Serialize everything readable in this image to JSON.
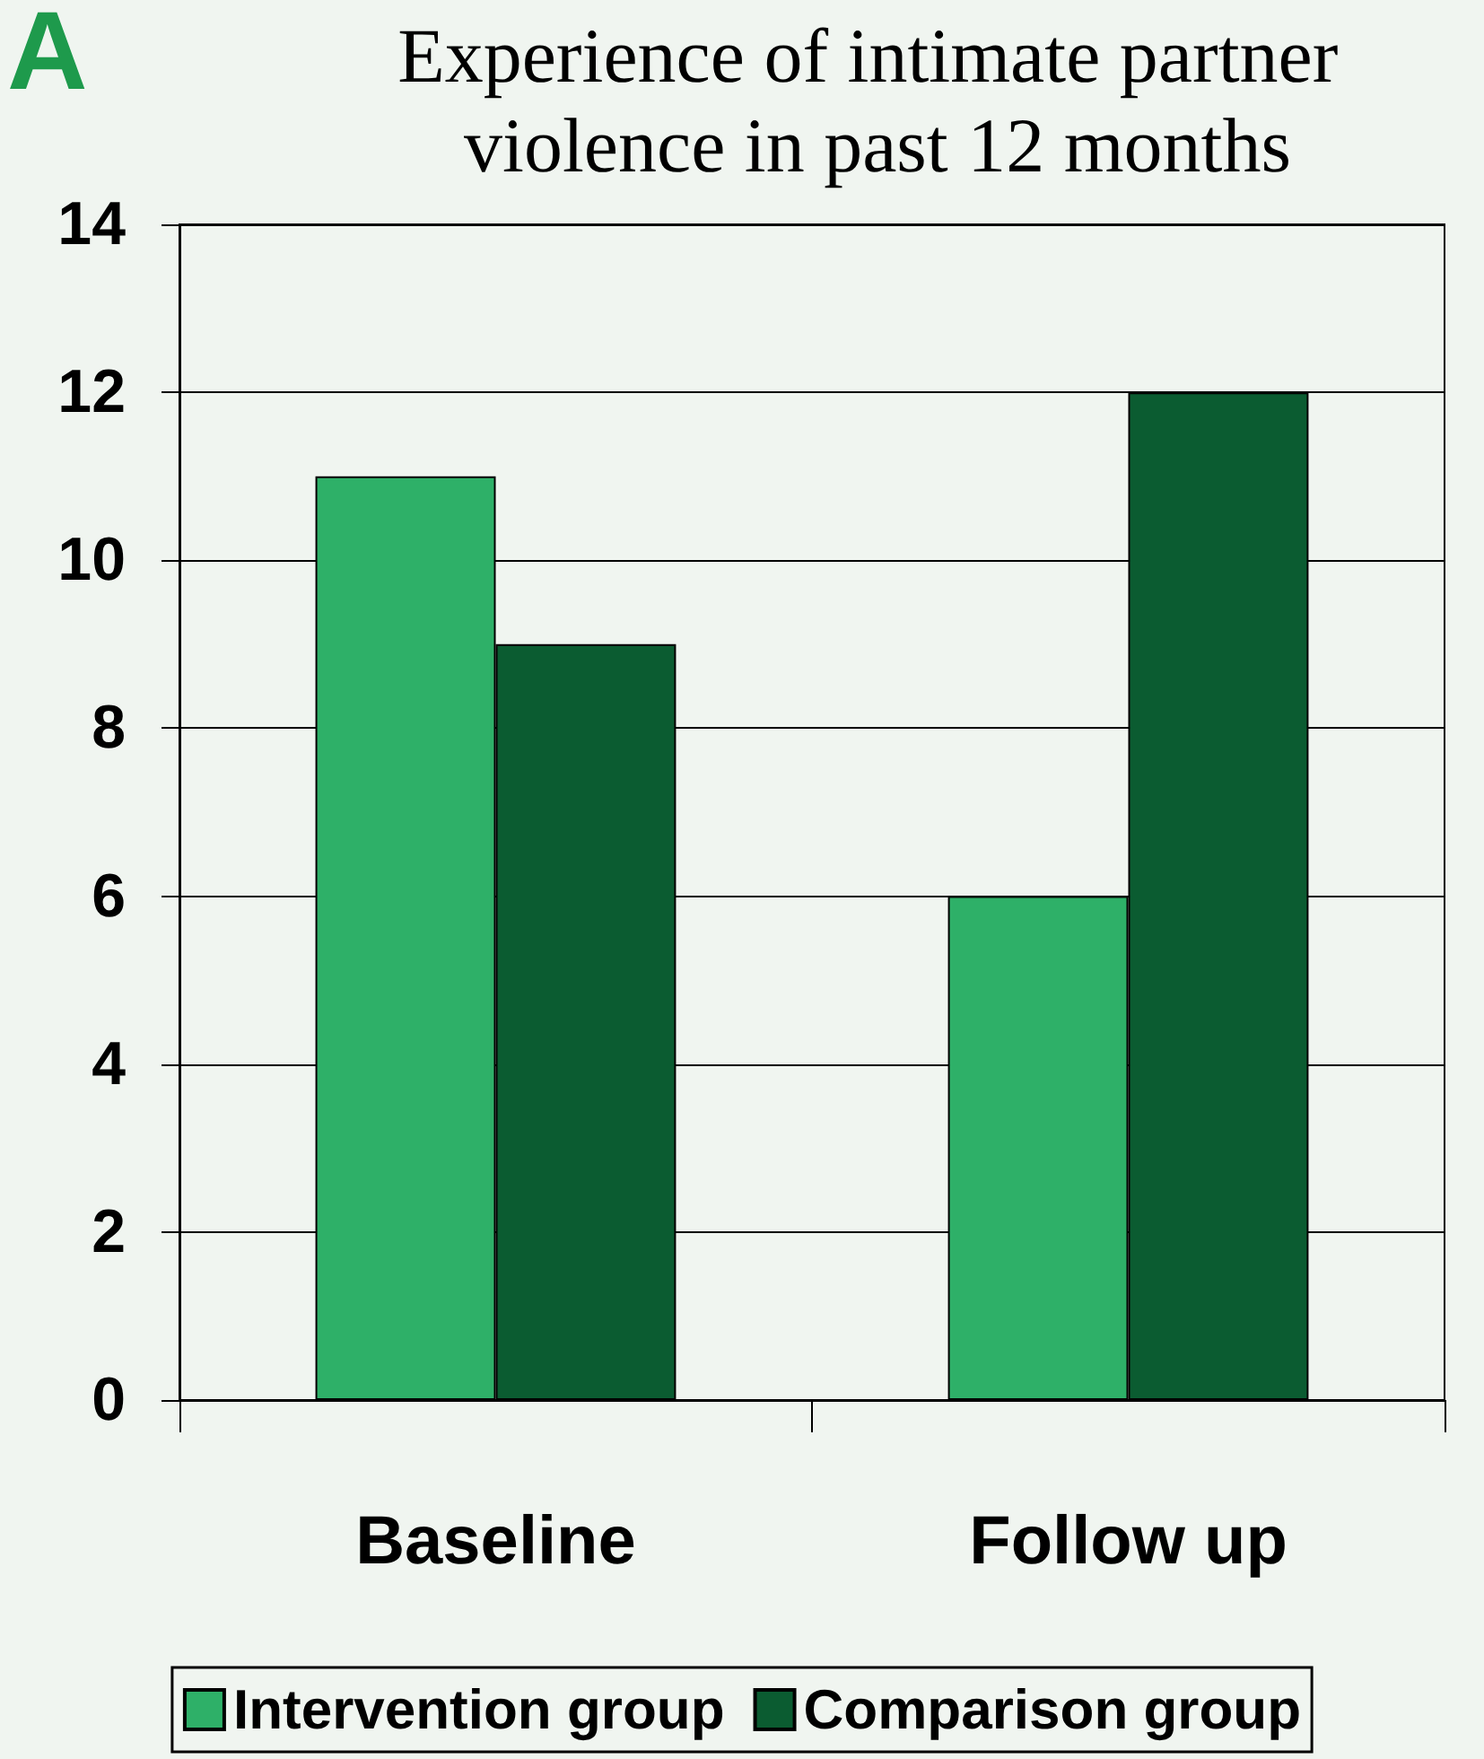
{
  "chart_data": {
    "type": "bar",
    "title": "Experience of intimate partner violence in past 12 months",
    "annotations": [
      "A"
    ],
    "categories": [
      "Baseline",
      "Follow up"
    ],
    "series": [
      {
        "name": "Intervention group",
        "color": "#2eb068",
        "values": [
          11,
          6
        ]
      },
      {
        "name": "Comparison group",
        "color": "#0b5c31",
        "values": [
          9,
          12
        ]
      }
    ],
    "ylim": [
      0,
      14
    ],
    "yticks": [
      0,
      2,
      4,
      6,
      8,
      10,
      12,
      14
    ],
    "grid": "y",
    "legend": "bottom"
  }
}
